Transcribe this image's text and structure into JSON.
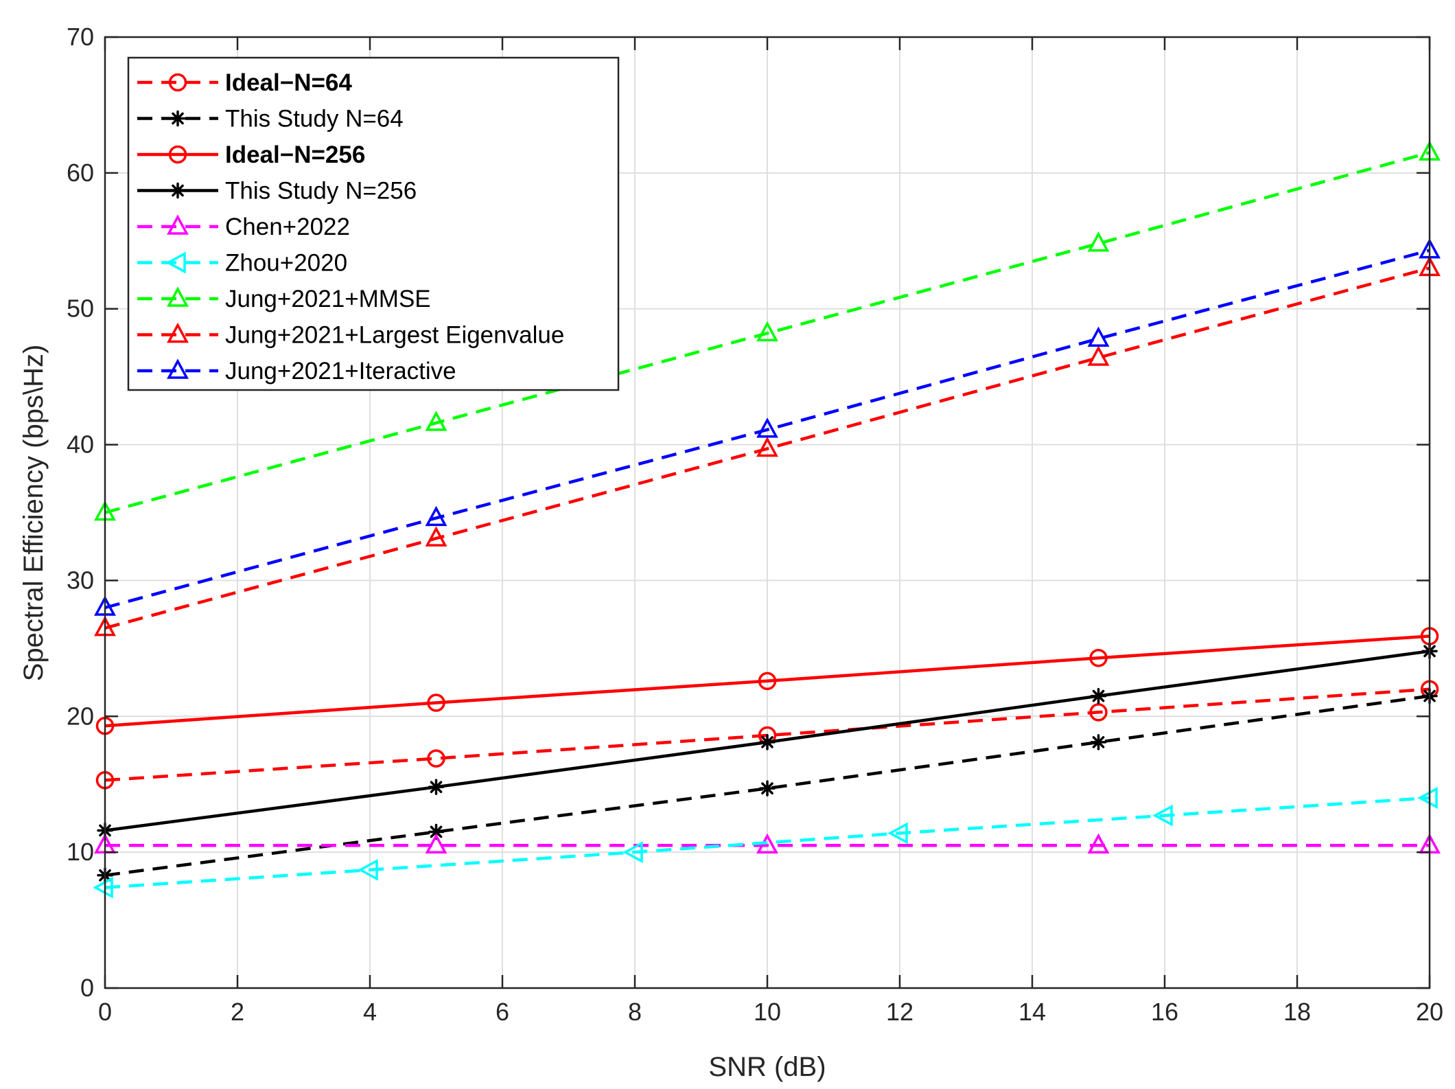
{
  "chart_data": {
    "type": "line",
    "title": "",
    "xlabel": "SNR (dB)",
    "ylabel": "Spectral Efficiency (bps\\Hz)",
    "xlim": [
      0,
      20
    ],
    "ylim": [
      0,
      70
    ],
    "x_ticks": [
      0,
      2,
      4,
      6,
      8,
      10,
      12,
      14,
      16,
      18,
      20
    ],
    "y_ticks": [
      0,
      10,
      20,
      30,
      40,
      50,
      60,
      70
    ],
    "grid": true,
    "legend_position": "top-left",
    "series": [
      {
        "name": "Ideal−N=64",
        "bold": true,
        "color": "#ff0000",
        "dash": "dashed",
        "marker": "circle",
        "x": [
          0,
          5,
          10,
          15,
          20
        ],
        "y": [
          15.3,
          16.9,
          18.6,
          20.3,
          22.0
        ]
      },
      {
        "name": "This Study N=64",
        "bold": false,
        "color": "#000000",
        "dash": "dashed",
        "marker": "asterisk",
        "x": [
          0,
          5,
          10,
          15,
          20
        ],
        "y": [
          8.3,
          11.5,
          14.7,
          18.1,
          21.5
        ]
      },
      {
        "name": "Ideal−N=256",
        "bold": true,
        "color": "#ff0000",
        "dash": "solid",
        "marker": "circle",
        "x": [
          0,
          5,
          10,
          15,
          20
        ],
        "y": [
          19.3,
          21.0,
          22.6,
          24.3,
          25.9
        ]
      },
      {
        "name": "This Study N=256",
        "bold": false,
        "color": "#000000",
        "dash": "solid",
        "marker": "asterisk",
        "x": [
          0,
          5,
          10,
          15,
          20
        ],
        "y": [
          11.6,
          14.8,
          18.1,
          21.5,
          24.8
        ]
      },
      {
        "name": "Chen+2022",
        "bold": false,
        "color": "#ff00ff",
        "dash": "dashed",
        "marker": "triangle-up",
        "x": [
          0,
          5,
          10,
          15,
          20
        ],
        "y": [
          10.5,
          10.5,
          10.5,
          10.5,
          10.5
        ]
      },
      {
        "name": "Zhou+2020",
        "bold": false,
        "color": "#00ffff",
        "dash": "dashed",
        "marker": "triangle-left",
        "x": [
          0,
          4,
          8,
          12,
          16,
          20
        ],
        "y": [
          7.4,
          8.7,
          10.0,
          11.4,
          12.7,
          14.0
        ]
      },
      {
        "name": "Jung+2021+MMSE",
        "bold": false,
        "color": "#00ff00",
        "dash": "dashed",
        "marker": "triangle-up",
        "x": [
          0,
          5,
          10,
          15,
          20
        ],
        "y": [
          35.0,
          41.6,
          48.2,
          54.8,
          61.5
        ]
      },
      {
        "name": "Jung+2021+Largest Eigenvalue",
        "bold": false,
        "color": "#ff0000",
        "dash": "dashed",
        "marker": "triangle-up",
        "x": [
          0,
          5,
          10,
          15,
          20
        ],
        "y": [
          26.5,
          33.1,
          39.7,
          46.4,
          53.0
        ]
      },
      {
        "name": "Jung+2021+Iteractive",
        "bold": false,
        "color": "#0000ff",
        "dash": "dashed",
        "marker": "triangle-up",
        "x": [
          0,
          5,
          10,
          15,
          20
        ],
        "y": [
          28.0,
          34.6,
          41.1,
          47.8,
          54.3
        ]
      }
    ]
  }
}
